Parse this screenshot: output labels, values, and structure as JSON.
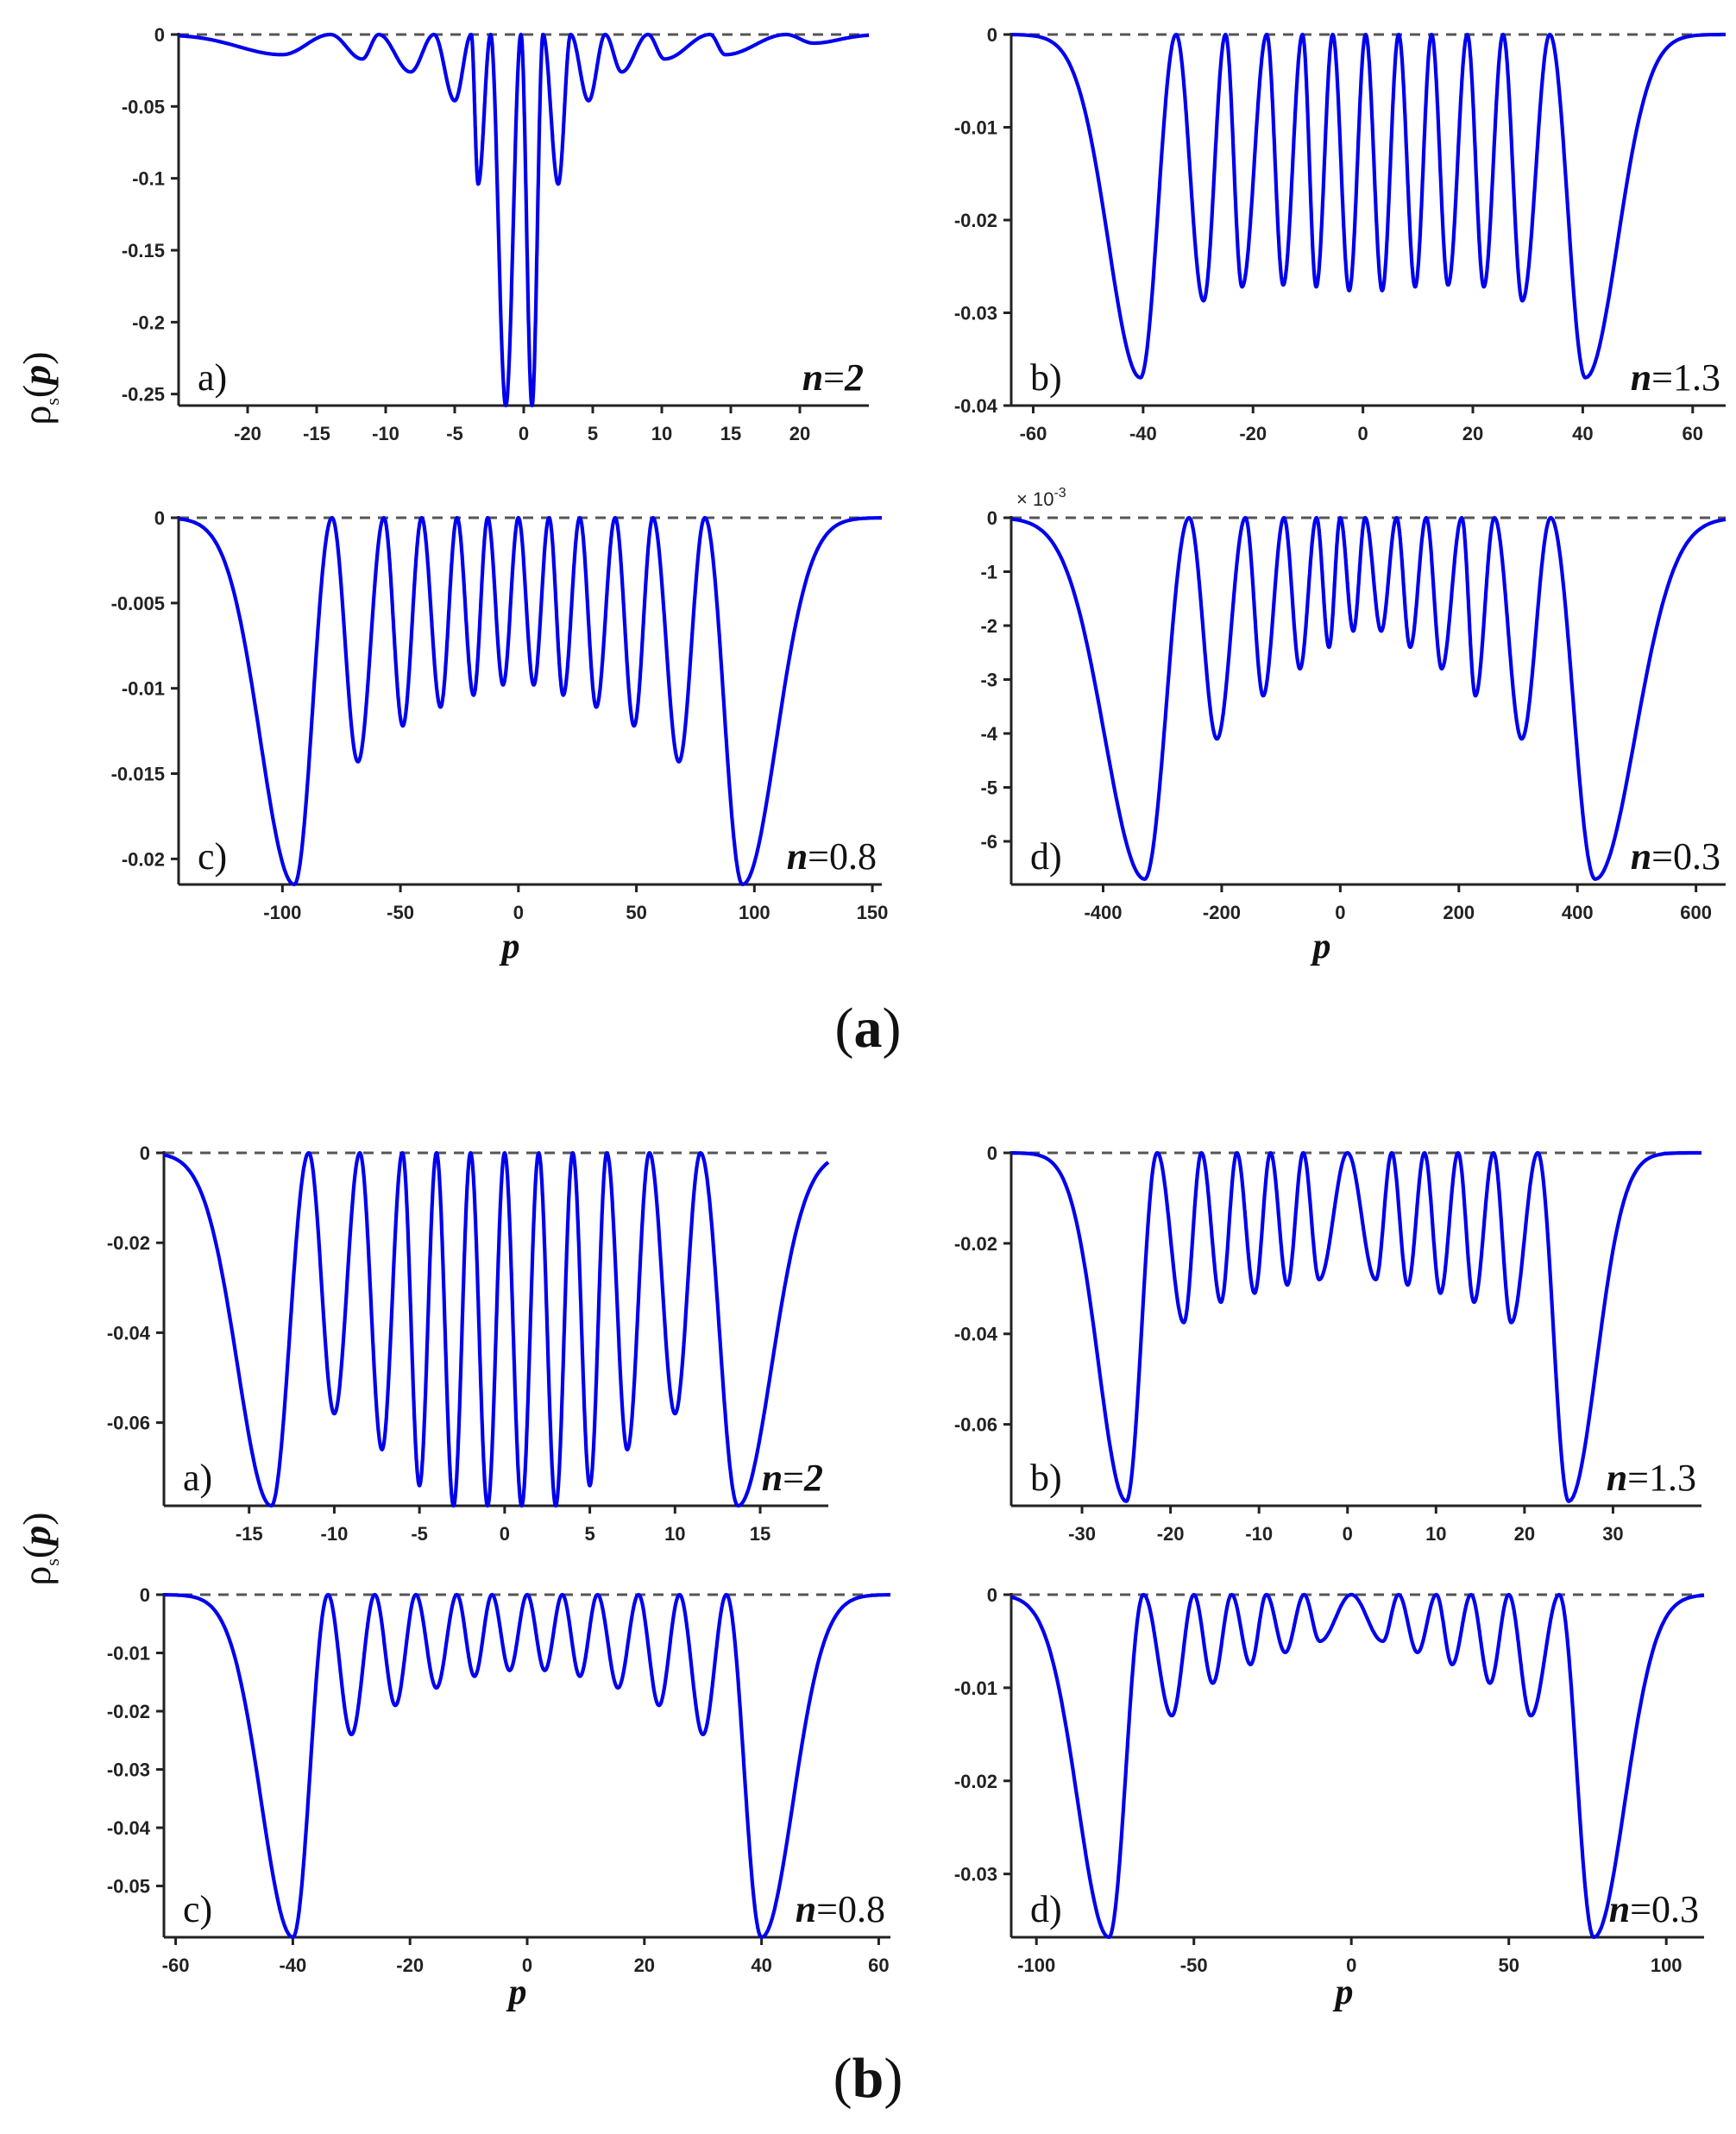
{
  "figure": {
    "y_axis_label": {
      "symbol": "ρ",
      "subscript": "s",
      "argument_open": "(",
      "argument_var": "p",
      "argument_close": ")"
    },
    "x_axis_label": "p",
    "captions": [
      {
        "open": "(",
        "letter": "a",
        "close": ")"
      },
      {
        "open": "(",
        "letter": "b",
        "close": ")"
      }
    ]
  },
  "chart_data": [
    {
      "id": "a-a",
      "type": "line",
      "figure": "a",
      "panel": "a)",
      "n_var": "n",
      "n_eq": "=",
      "n_value": "2",
      "n_value_italic": true,
      "xlim": [
        -25,
        25
      ],
      "ylim": [
        -0.258,
        0
      ],
      "xticks": [
        "-20",
        "-15",
        "-10",
        "-5",
        "0",
        "5",
        "10",
        "15",
        "20"
      ],
      "yticks": [
        "0",
        "-0.05",
        "-0.1",
        "-0.15",
        "-0.2",
        "-0.25"
      ],
      "exponent_label": "",
      "series": [
        {
          "name": "rho_s(p)",
          "color": "#0000ee",
          "valley_centers": [
            -17.5,
            -11.7,
            -8.2,
            -5.0,
            -3.3,
            -1.3,
            0.6,
            2.5,
            4.7,
            7.1,
            10.2,
            14.6,
            21.0
          ],
          "valley_depths": [
            -0.014,
            -0.017,
            -0.026,
            -0.046,
            -0.104,
            -0.258,
            -0.258,
            -0.104,
            -0.046,
            -0.026,
            -0.017,
            -0.014,
            -0.006
          ],
          "zeros": [
            -14,
            -10.5,
            -6.5,
            -3.8,
            -2.4,
            -0.2,
            1.4,
            3.4,
            5.9,
            9.0,
            13.5,
            19.0
          ]
        }
      ]
    },
    {
      "id": "a-b",
      "type": "line",
      "figure": "a",
      "panel": "b)",
      "n_var": "n",
      "n_eq": "=",
      "n_value": "1.3",
      "n_value_italic": false,
      "xlim": [
        -64,
        66
      ],
      "ylim": [
        -0.04,
        0
      ],
      "xticks": [
        "-60",
        "-40",
        "-20",
        "0",
        "20",
        "40",
        "60"
      ],
      "yticks": [
        "0",
        "-0.01",
        "-0.02",
        "-0.03",
        "-0.04"
      ],
      "exponent_label": "",
      "series": [
        {
          "name": "rho_s(p)",
          "color": "#0000ee",
          "valley_centers": [
            -40.5,
            -29.0,
            -22.0,
            -14.5,
            -8.5,
            -2.5,
            3.5,
            9.5,
            15.5,
            22.0,
            29.0,
            40.5
          ],
          "valley_depths": [
            -0.037,
            -0.0287,
            -0.0272,
            -0.027,
            -0.0272,
            -0.0276,
            -0.0276,
            -0.0272,
            -0.027,
            -0.0272,
            -0.0287,
            -0.037
          ],
          "zeros": [
            -34,
            -25,
            -17.5,
            -11,
            -5.5,
            0.5,
            6.5,
            12.5,
            19,
            25.5,
            34
          ]
        }
      ]
    },
    {
      "id": "a-c",
      "type": "line",
      "figure": "a",
      "panel": "c)",
      "n_var": "n",
      "n_eq": "=",
      "n_value": "0.8",
      "n_value_italic": false,
      "xlim": [
        -144,
        154
      ],
      "ylim": [
        -0.0215,
        0
      ],
      "xticks": [
        "-100",
        "-50",
        "0",
        "50",
        "100",
        "150"
      ],
      "yticks": [
        "0",
        "-0.005",
        "-0.01",
        "-0.015",
        "-0.02"
      ],
      "exponent_label": "",
      "series": [
        {
          "name": "rho_s(p)",
          "color": "#0000ee",
          "valley_centers": [
            -95,
            -68,
            -49,
            -33,
            -19,
            -6.5,
            6.5,
            19,
            33,
            49,
            68,
            95
          ],
          "valley_depths": [
            -0.0215,
            -0.0143,
            -0.0122,
            -0.0111,
            -0.0104,
            -0.0098,
            -0.0098,
            -0.0104,
            -0.0111,
            -0.0122,
            -0.0143,
            -0.0215
          ],
          "zeros": [
            -79,
            -57,
            -41,
            -26,
            -13,
            0,
            13,
            26,
            41,
            57,
            79
          ]
        }
      ]
    },
    {
      "id": "a-d",
      "type": "line",
      "figure": "a",
      "panel": "d)",
      "n_var": "n",
      "n_eq": "=",
      "n_value": "0.3",
      "n_value_italic": false,
      "xlim": [
        -555,
        650
      ],
      "ylim": [
        -6.8,
        0
      ],
      "xticks": [
        "-400",
        "-200",
        "0",
        "200",
        "400",
        "600"
      ],
      "yticks": [
        "0",
        "-1",
        "-2",
        "-3",
        "-4",
        "-5",
        "-6"
      ],
      "exponent_label": "× 10",
      "exponent_power": "-3",
      "series": [
        {
          "name": "rho_s(p) / 1e-3",
          "color": "#0000ee",
          "valley_centers": [
            -330,
            -208,
            -130,
            -68,
            -19,
            22,
            69,
            118,
            171,
            228,
            306,
            430
          ],
          "valley_depths": [
            -6.7,
            -4.1,
            -3.3,
            -2.8,
            -2.4,
            -2.1,
            -2.1,
            -2.4,
            -2.8,
            -3.3,
            -4.1,
            -6.7
          ],
          "zeros": [
            -255,
            -160,
            -95,
            -40,
            0,
            42,
            95,
            145,
            205,
            260,
            355
          ]
        }
      ]
    },
    {
      "id": "b-a",
      "type": "line",
      "figure": "b",
      "panel": "a)",
      "n_var": "n",
      "n_eq": "=",
      "n_value": "2",
      "n_value_italic": true,
      "xlim": [
        -20,
        19
      ],
      "ylim": [
        -0.0785,
        0
      ],
      "xticks": [
        "-15",
        "-10",
        "-5",
        "0",
        "5",
        "10",
        "15"
      ],
      "yticks": [
        "0",
        "-0.02",
        "-0.04",
        "-0.06"
      ],
      "exponent_label": "",
      "series": [
        {
          "name": "rho_s(p)",
          "color": "#0000ee",
          "valley_centers": [
            -13.7,
            -10,
            -7.2,
            -5,
            -3,
            -1,
            1,
            3,
            5,
            7.2,
            10,
            13.7
          ],
          "valley_depths": [
            -0.0785,
            -0.058,
            -0.066,
            -0.074,
            -0.0785,
            -0.0785,
            -0.0785,
            -0.0785,
            -0.074,
            -0.066,
            -0.058,
            -0.0785
          ],
          "zeros": [
            -11.5,
            -8.5,
            -6.0,
            -4.0,
            -2.0,
            0,
            2.0,
            4.0,
            6.0,
            8.5,
            11.5
          ]
        }
      ]
    },
    {
      "id": "b-b",
      "type": "line",
      "figure": "b",
      "panel": "b)",
      "n_var": "n",
      "n_eq": "=",
      "n_value": "1.3",
      "n_value_italic": false,
      "xlim": [
        -38,
        40
      ],
      "ylim": [
        -0.078,
        0
      ],
      "xticks": [
        "-30",
        "-20",
        "-10",
        "0",
        "10",
        "20",
        "30"
      ],
      "yticks": [
        "0",
        "-0.02",
        "-0.04",
        "-0.06"
      ],
      "exponent_label": "",
      "series": [
        {
          "name": "rho_s(p)",
          "color": "#0000ee",
          "valley_centers": [
            -25,
            -18.5,
            -14.3,
            -10.5,
            -6.8,
            -3.2,
            3.2,
            6.8,
            10.5,
            14.3,
            18.5,
            25
          ],
          "valley_depths": [
            -0.077,
            -0.0375,
            -0.033,
            -0.031,
            -0.0292,
            -0.028,
            -0.028,
            -0.0292,
            -0.031,
            -0.033,
            -0.0375,
            -0.077
          ],
          "zeros": [
            -21.5,
            -16.5,
            -12.5,
            -8.7,
            -5,
            0,
            5,
            8.7,
            12.5,
            16.5,
            21.5
          ]
        }
      ]
    },
    {
      "id": "b-c",
      "type": "line",
      "figure": "b",
      "panel": "c)",
      "n_var": "n",
      "n_eq": "=",
      "n_value": "0.8",
      "n_value_italic": false,
      "xlim": [
        -62,
        62
      ],
      "ylim": [
        -0.0588,
        0
      ],
      "xticks": [
        "-60",
        "-40",
        "-20",
        "0",
        "20",
        "40",
        "60"
      ],
      "yticks": [
        "0",
        "-0.01",
        "-0.02",
        "-0.03",
        "-0.04",
        "-0.05"
      ],
      "exponent_label": "",
      "series": [
        {
          "name": "rho_s(p)",
          "color": "#0000ee",
          "valley_centers": [
            -40,
            -30,
            -22.5,
            -15.5,
            -9,
            -3,
            3,
            9,
            15.5,
            22.5,
            30,
            40
          ],
          "valley_depths": [
            -0.0588,
            -0.024,
            -0.019,
            -0.016,
            -0.014,
            -0.013,
            -0.013,
            -0.014,
            -0.016,
            -0.019,
            -0.024,
            -0.0588
          ],
          "zeros": [
            -34,
            -26,
            -19,
            -12,
            -6,
            0,
            6,
            12,
            19,
            26,
            34
          ]
        }
      ]
    },
    {
      "id": "b-d",
      "type": "line",
      "figure": "b",
      "panel": "d)",
      "n_var": "n",
      "n_eq": "=",
      "n_value": "0.3",
      "n_value_italic": false,
      "xlim": [
        -108,
        112
      ],
      "ylim": [
        -0.0368,
        0
      ],
      "xticks": [
        "-100",
        "-50",
        "0",
        "50",
        "100"
      ],
      "yticks": [
        "0",
        "-0.01",
        "-0.02",
        "-0.03"
      ],
      "exponent_label": "",
      "series": [
        {
          "name": "rho_s(p)",
          "color": "#0000ee",
          "valley_centers": [
            -77,
            -57,
            -44,
            -32,
            -21,
            -10,
            10,
            21,
            32,
            44,
            57,
            77
          ],
          "valley_depths": [
            -0.0368,
            -0.013,
            -0.0095,
            -0.0075,
            -0.0062,
            -0.005,
            -0.005,
            -0.0062,
            -0.0075,
            -0.0095,
            -0.013,
            -0.0368
          ],
          "zeros": [
            -66,
            -50,
            -38,
            -27,
            -15,
            0,
            15,
            27,
            38,
            50,
            66
          ]
        }
      ]
    }
  ]
}
